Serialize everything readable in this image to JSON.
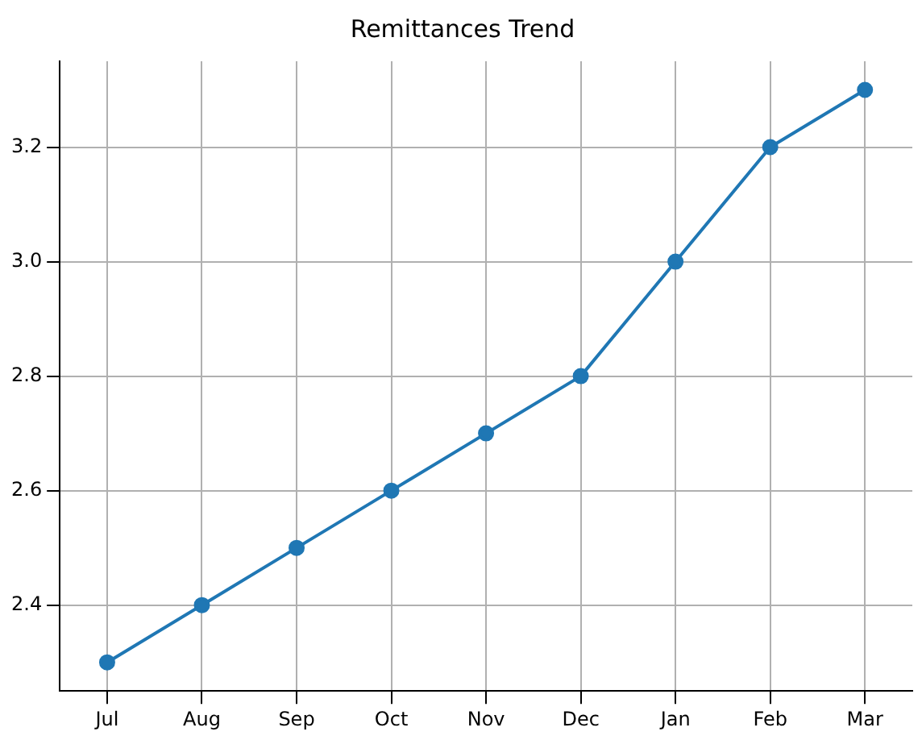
{
  "chart_data": {
    "type": "line",
    "title": "Remittances Trend",
    "categories": [
      "Jul",
      "Aug",
      "Sep",
      "Oct",
      "Nov",
      "Dec",
      "Jan",
      "Feb",
      "Mar"
    ],
    "series": [
      {
        "color": "#1f77b4",
        "values": [
          2.3,
          2.4,
          2.5,
          2.6,
          2.7,
          2.8,
          3.0,
          3.2,
          3.3
        ]
      }
    ],
    "ylim": [
      2.25,
      3.35
    ],
    "yticks": [
      {
        "value": 2.4,
        "label": "2.4"
      },
      {
        "value": 2.6,
        "label": "2.6"
      },
      {
        "value": 2.8,
        "label": "2.8"
      },
      {
        "value": 3.0,
        "label": "3.0"
      },
      {
        "value": 3.2,
        "label": "3.2"
      }
    ],
    "grid": true,
    "marker": "circle",
    "legend": false
  }
}
